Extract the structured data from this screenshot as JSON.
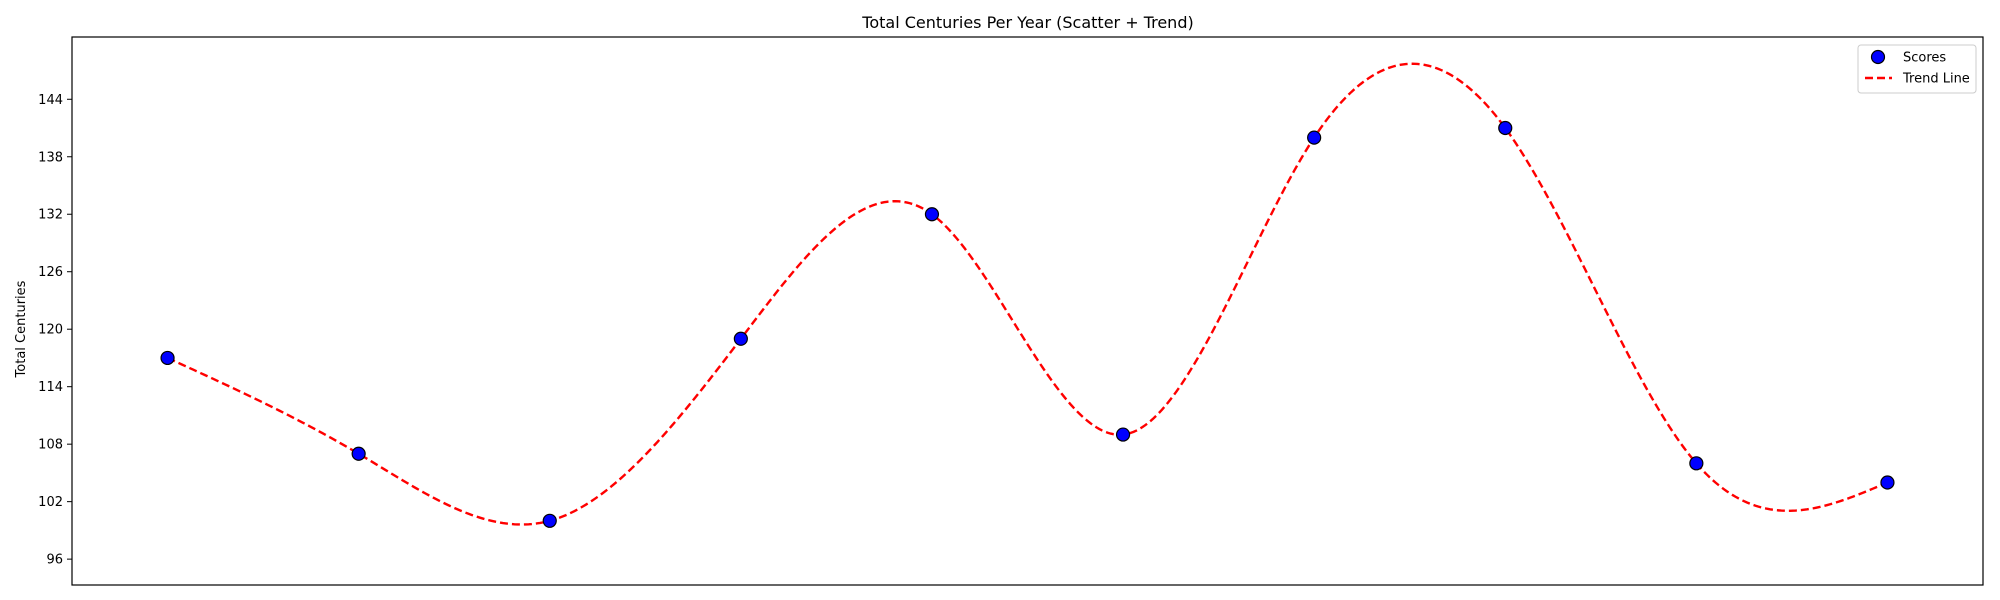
{
  "chart_data": {
    "type": "scatter",
    "title": "Total Centuries Per Year (Scatter + Trend)",
    "xlabel": "",
    "ylabel": "Total Centuries",
    "x": [
      0,
      1,
      2,
      3,
      4,
      5,
      6,
      7,
      8,
      9
    ],
    "series": [
      {
        "name": "Scores",
        "kind": "scatter",
        "values": [
          117,
          107,
          100,
          119,
          132,
          109,
          140,
          141,
          106,
          104
        ],
        "color": "#0000ff",
        "edge_color": "#000000"
      },
      {
        "name": "Trend Line",
        "kind": "line",
        "style": "dashed",
        "values": [
          117,
          107,
          100,
          119,
          132,
          109,
          140,
          141,
          106,
          104
        ],
        "color": "#ff0000"
      }
    ],
    "yticks": [
      96,
      102,
      108,
      114,
      120,
      126,
      132,
      138,
      144
    ],
    "ylim": [
      93.3,
      150.5
    ],
    "xlim": [
      -0.5,
      9.5
    ],
    "xticks_visible": false,
    "grid": false,
    "legend_position": "top-right"
  }
}
